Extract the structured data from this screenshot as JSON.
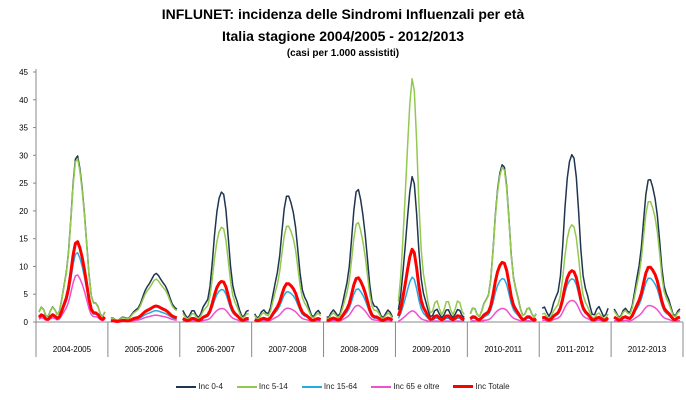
{
  "chart_data": {
    "type": "line",
    "title": "INFLUNET: incidenza delle Sindromi Influenzali per età",
    "subtitle": "Italia stagione 2004/2005 - 2012/2013",
    "ylabel": "(casi per 1.000 assistiti)",
    "ylim": [
      0,
      45
    ],
    "yticks": [
      0,
      5,
      10,
      15,
      20,
      25,
      30,
      35,
      40,
      45
    ],
    "weeks_per_season": 30,
    "legend_position": "bottom",
    "series": [
      {
        "key": "inc04",
        "name": "Inc 0-4",
        "color": "#1f3550",
        "width": 1.5
      },
      {
        "key": "inc514",
        "name": "Inc 5-14",
        "color": "#92c94f",
        "width": 1.5
      },
      {
        "key": "inc1564",
        "name": "Inc 15-64",
        "color": "#27a9e1",
        "width": 1.5
      },
      {
        "key": "inc65",
        "name": "Inc 65 e oltre",
        "color": "#f24fce",
        "width": 1.5
      },
      {
        "key": "tot",
        "name": "Inc Totale",
        "color": "#ff0000",
        "width": 3
      }
    ],
    "seasons": [
      {
        "label": "2004-2005",
        "peak_week": 17,
        "spread": 3,
        "peaks": {
          "inc04": 30,
          "inc514": 29.5,
          "inc1564": 12.5,
          "inc65": 8.5,
          "tot": 14.5
        }
      },
      {
        "label": "2005-2006",
        "peak_week": 20,
        "spread": 5,
        "peaks": {
          "inc04": 8.5,
          "inc514": 7.5,
          "inc1564": 2,
          "inc65": 1.2,
          "tot": 2.8
        }
      },
      {
        "label": "2006-2007",
        "peak_week": 17,
        "spread": 3,
        "peaks": {
          "inc04": 24,
          "inc514": 17.5,
          "inc1564": 6,
          "inc65": 2.5,
          "tot": 7.5
        }
      },
      {
        "label": "2007-2008",
        "peak_week": 15,
        "spread": 3.5,
        "peaks": {
          "inc04": 23,
          "inc514": 17.5,
          "inc1564": 5.5,
          "inc65": 2.5,
          "tot": 7
        }
      },
      {
        "label": "2008-2009",
        "peak_week": 14,
        "spread": 3,
        "peaks": {
          "inc04": 24,
          "inc514": 18,
          "inc1564": 6,
          "inc65": 3,
          "tot": 8
        }
      },
      {
        "label": "2009-2010",
        "peak_week": 6,
        "spread": 2.5,
        "peaks": {
          "inc04": 26,
          "inc514": 43.5,
          "inc1564": 8,
          "inc65": 2,
          "tot": 13
        }
      },
      {
        "label": "2010-2011",
        "peak_week": 14,
        "spread": 3,
        "peaks": {
          "inc04": 29,
          "inc514": 28.5,
          "inc1564": 8,
          "inc65": 2.5,
          "tot": 11
        }
      },
      {
        "label": "2011-2012",
        "peak_week": 13,
        "spread": 3,
        "peaks": {
          "inc04": 31,
          "inc514": 18,
          "inc1564": 8,
          "inc65": 4,
          "tot": 9.5
        }
      },
      {
        "label": "2012-2013",
        "peak_week": 16,
        "spread": 3.5,
        "peaks": {
          "inc04": 26,
          "inc514": 22,
          "inc1564": 8,
          "inc65": 3,
          "tot": 10
        }
      }
    ]
  }
}
